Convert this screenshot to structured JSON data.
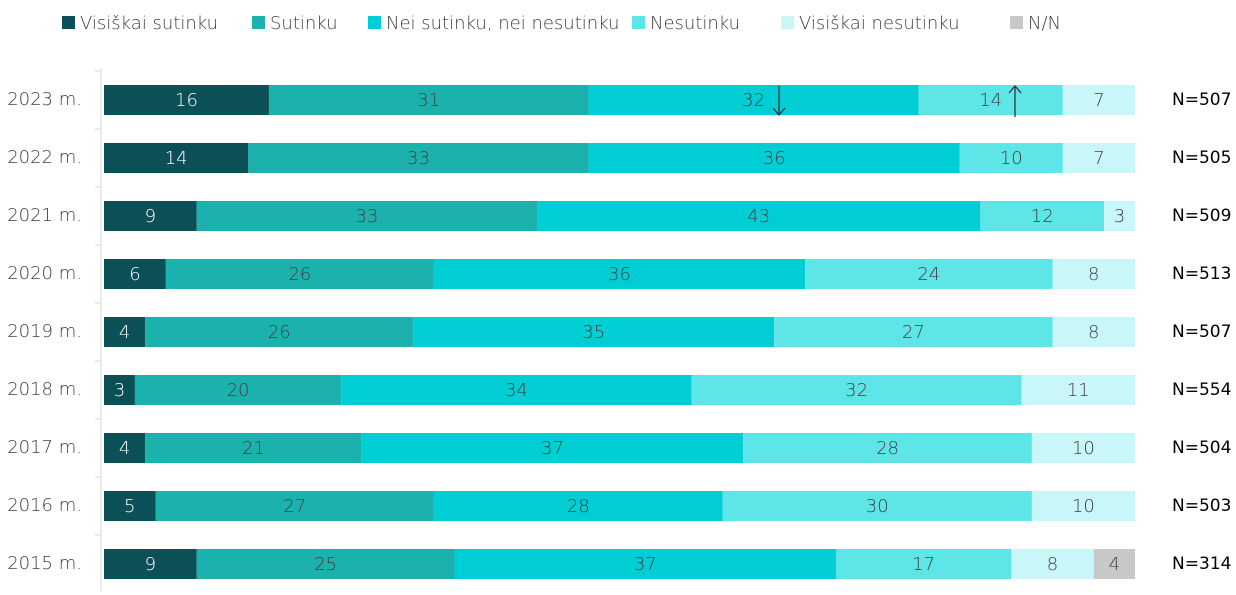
{
  "chart_data": {
    "type": "stacked-bar-horizontal",
    "categories": [
      "2023 m.",
      "2022 m.",
      "2021 m.",
      "2020 m.",
      "2019 m.",
      "2018 m.",
      "2017 m.",
      "2016 m.",
      "2015 m."
    ],
    "series": [
      {
        "name": "Visiškai sutinku",
        "color": "#0b5056",
        "values": [
          16,
          14,
          9,
          6,
          4,
          3,
          4,
          5,
          9
        ]
      },
      {
        "name": "Sutinku",
        "color": "#1bb2ad",
        "values": [
          31,
          33,
          33,
          26,
          26,
          20,
          21,
          27,
          25
        ]
      },
      {
        "name": "Nei sutinku, nei nesutinku",
        "color": "#00ced5",
        "values": [
          32,
          36,
          43,
          36,
          35,
          34,
          37,
          28,
          37
        ]
      },
      {
        "name": "Nesutinku",
        "color": "#5ee5e8",
        "values": [
          14,
          10,
          12,
          24,
          27,
          32,
          28,
          30,
          17
        ]
      },
      {
        "name": "Visiškai nesutinku",
        "color": "#c9f6f8",
        "values": [
          7,
          7,
          3,
          8,
          8,
          11,
          10,
          10,
          8
        ]
      },
      {
        "name": "N/N",
        "color": "#c8c8c8",
        "values": [
          null,
          null,
          null,
          null,
          null,
          null,
          null,
          null,
          4
        ]
      }
    ],
    "annotations": [
      "N=507",
      "N=505",
      "N=509",
      "N=513",
      "N=507",
      "N=554",
      "N=504",
      "N=503",
      "N=314"
    ],
    "xlim": [
      0,
      100
    ]
  }
}
